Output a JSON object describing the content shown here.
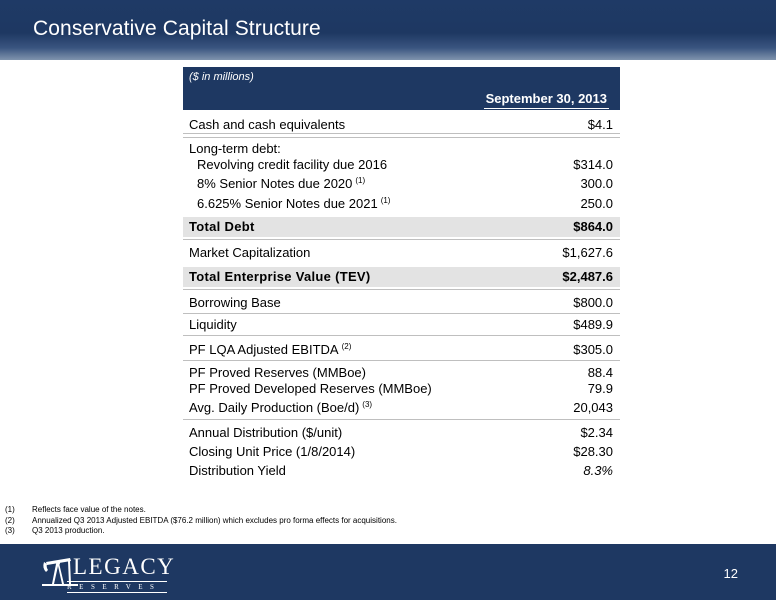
{
  "header": {
    "title": "Conservative Capital Structure"
  },
  "table": {
    "units": "($ in millions)",
    "column_header": "September 30, 2013",
    "rows": {
      "cash": {
        "label": "Cash and cash equivalents",
        "value": "$4.1"
      },
      "ltd_header": {
        "label": "Long-term debt:"
      },
      "revolver": {
        "label": "Revolving credit facility due 2016",
        "value": "$314.0"
      },
      "notes_2020": {
        "label": "8% Senior Notes due 2020",
        "note": "(1)",
        "value": "300.0"
      },
      "notes_2021": {
        "label": "6.625% Senior Notes due 2021",
        "note": "(1)",
        "value": "250.0"
      },
      "total_debt": {
        "label": "Total Debt",
        "value": "$864.0"
      },
      "market_cap": {
        "label": "Market Capitalization",
        "value": "$1,627.6"
      },
      "tev": {
        "label": "Total Enterprise Value (TEV)",
        "value": "$2,487.6"
      },
      "borrowing_base": {
        "label": "Borrowing Base",
        "value": "$800.0"
      },
      "liquidity": {
        "label": "Liquidity",
        "value": "$489.9"
      },
      "ebitda": {
        "label": "PF LQA Adjusted EBITDA",
        "note": "(2)",
        "value": "$305.0"
      },
      "proved": {
        "label": "PF Proved Reserves (MMBoe)",
        "value": "88.4"
      },
      "proved_dev": {
        "label": "PF Proved Developed Reserves (MMBoe)",
        "value": "79.9"
      },
      "production": {
        "label": "Avg. Daily Production (Boe/d)",
        "note": "(3)",
        "value": "20,043"
      },
      "distribution": {
        "label": "Annual Distribution ($/unit)",
        "value": "$2.34"
      },
      "closing_price": {
        "label": "Closing Unit Price (1/8/2014)",
        "value": "$28.30"
      },
      "yield": {
        "label": "Distribution Yield",
        "value": "8.3%"
      }
    }
  },
  "footnotes": [
    {
      "num": "(1)",
      "text": "Reflects face value of the notes."
    },
    {
      "num": "(2)",
      "text": "Annualized Q3 2013 Adjusted EBITDA ($76.2 million) which excludes pro forma effects for acquisitions."
    },
    {
      "num": "(3)",
      "text": "Q3 2013 production."
    }
  ],
  "footer": {
    "logo_word": "LEGACY",
    "logo_sub": "RESERVES",
    "page_number": "12"
  },
  "colors": {
    "navy": "#1e3862",
    "shade": "#e3e3e3"
  }
}
